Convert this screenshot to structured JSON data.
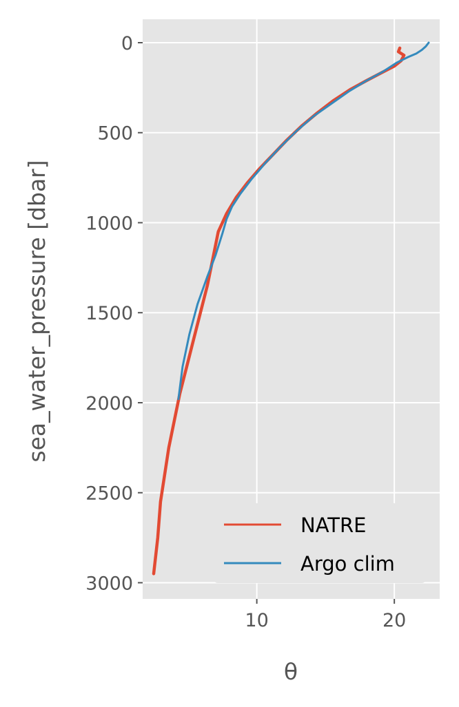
{
  "chart_data": {
    "type": "line",
    "xlabel": "θ",
    "ylabel": "sea_water_pressure [dbar]",
    "xlim": [
      1.7,
      23.3
    ],
    "ylim": [
      -130,
      3090
    ],
    "y_inverted": true,
    "x_ticks": [
      {
        "value": 10,
        "label": "10"
      },
      {
        "value": 20,
        "label": "20"
      }
    ],
    "y_ticks": [
      {
        "value": 0,
        "label": "0"
      },
      {
        "value": 500,
        "label": "500"
      },
      {
        "value": 1000,
        "label": "1000"
      },
      {
        "value": 1500,
        "label": "1500"
      },
      {
        "value": 2000,
        "label": "2000"
      },
      {
        "value": 2500,
        "label": "2500"
      },
      {
        "value": 3000,
        "label": "3000"
      }
    ],
    "grid": true,
    "legend_position": "lower right",
    "series": [
      {
        "name": "NATRE",
        "color": "#e24a33",
        "x": [
          2.5,
          2.8,
          3.0,
          3.3,
          3.6,
          4.0,
          4.4,
          4.9,
          5.4,
          5.9,
          6.4,
          6.8,
          7.2,
          7.8,
          8.5,
          9.3,
          10.2,
          11.2,
          12.2,
          13.3,
          14.4,
          15.6,
          16.8,
          18.0,
          19.0,
          20.0,
          20.5,
          20.7,
          20.3,
          20.4
        ],
        "y": [
          2950,
          2750,
          2550,
          2400,
          2250,
          2100,
          1950,
          1800,
          1650,
          1500,
          1350,
          1200,
          1050,
          950,
          860,
          780,
          700,
          620,
          540,
          460,
          390,
          320,
          260,
          210,
          170,
          130,
          100,
          70,
          50,
          30
        ]
      },
      {
        "name": "Argo clim",
        "color": "#348abd",
        "x": [
          4.3,
          4.6,
          5.1,
          5.7,
          6.4,
          7.0,
          7.5,
          7.8,
          8.2,
          8.8,
          9.6,
          10.6,
          11.7,
          12.9,
          14.1,
          15.4,
          16.7,
          18.0,
          19.2,
          20.2,
          21.0,
          21.6,
          22.0,
          22.3,
          22.5
        ],
        "y": [
          1980,
          1800,
          1620,
          1450,
          1300,
          1180,
          1060,
          980,
          910,
          840,
          760,
          670,
          580,
          490,
          410,
          340,
          270,
          210,
          160,
          110,
          80,
          60,
          40,
          20,
          0
        ]
      }
    ]
  }
}
